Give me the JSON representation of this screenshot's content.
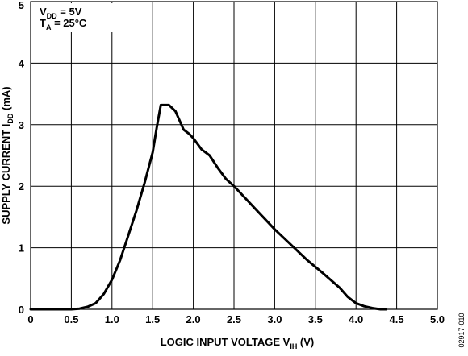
{
  "chart_data": {
    "type": "line",
    "xlabel": {
      "main": "LOGIC INPUT VOLTAGE V",
      "sub": "IH",
      "unit": " (V)"
    },
    "ylabel": {
      "main": "SUPPLY CURRENT I",
      "sub": "DD",
      "unit": " (mA)"
    },
    "xlim": [
      0,
      5
    ],
    "ylim": [
      0,
      5
    ],
    "x_ticks": [
      "0",
      "0.5",
      "1.0",
      "1.5",
      "2.0",
      "2.5",
      "3.0",
      "3.5",
      "4.0",
      "4.5",
      "5.0"
    ],
    "y_ticks": [
      "0",
      "1",
      "2",
      "3",
      "4",
      "5"
    ],
    "grid": true,
    "conditions": [
      {
        "main": "V",
        "sub": "DD",
        "rest": " = 5V"
      },
      {
        "main": "T",
        "sub": "A",
        "rest": " = 25°C"
      }
    ],
    "series": [
      {
        "points": [
          [
            0.0,
            0.0
          ],
          [
            0.5,
            0.0
          ],
          [
            0.6,
            0.01
          ],
          [
            0.7,
            0.04
          ],
          [
            0.8,
            0.1
          ],
          [
            0.9,
            0.25
          ],
          [
            1.0,
            0.48
          ],
          [
            1.1,
            0.8
          ],
          [
            1.2,
            1.2
          ],
          [
            1.3,
            1.6
          ],
          [
            1.4,
            2.05
          ],
          [
            1.5,
            2.55
          ],
          [
            1.55,
            2.95
          ],
          [
            1.6,
            3.32
          ],
          [
            1.7,
            3.32
          ],
          [
            1.78,
            3.22
          ],
          [
            1.82,
            3.1
          ],
          [
            1.88,
            2.92
          ],
          [
            1.95,
            2.85
          ],
          [
            2.0,
            2.78
          ],
          [
            2.1,
            2.6
          ],
          [
            2.2,
            2.5
          ],
          [
            2.3,
            2.3
          ],
          [
            2.4,
            2.12
          ],
          [
            2.5,
            2.0
          ],
          [
            2.6,
            1.86
          ],
          [
            2.8,
            1.58
          ],
          [
            3.0,
            1.3
          ],
          [
            3.2,
            1.05
          ],
          [
            3.4,
            0.8
          ],
          [
            3.6,
            0.58
          ],
          [
            3.8,
            0.35
          ],
          [
            3.9,
            0.2
          ],
          [
            4.0,
            0.1
          ],
          [
            4.1,
            0.05
          ],
          [
            4.2,
            0.02
          ],
          [
            4.3,
            0.0
          ],
          [
            4.37,
            0.0
          ]
        ]
      }
    ]
  },
  "figure_id": "02917-010"
}
